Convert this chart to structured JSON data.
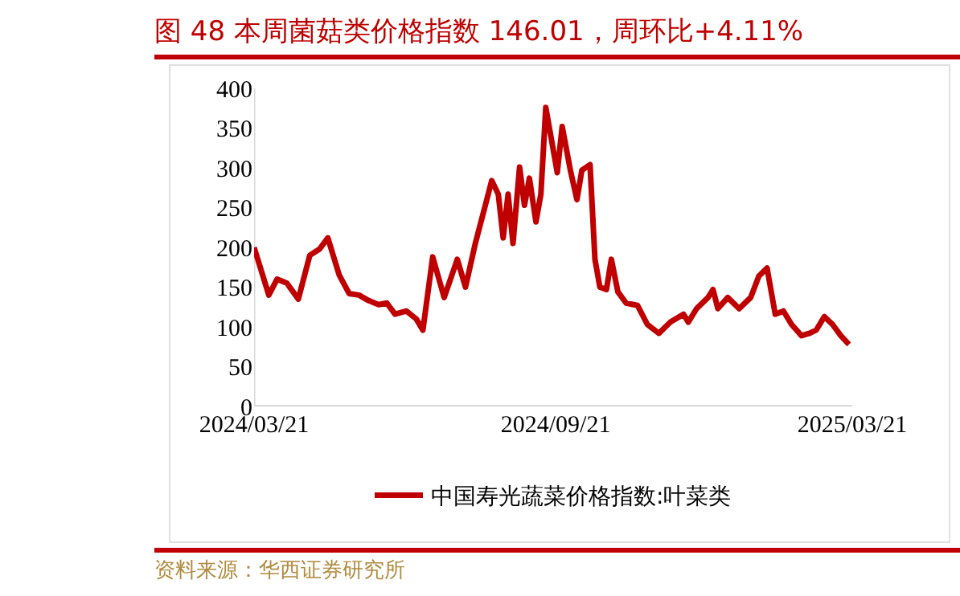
{
  "chart_data": {
    "type": "line",
    "title": "图 48 本周菌菇类价格指数 146.01，周环比+4.11%",
    "annotations": [
      "资料来源：华西证券研究所"
    ],
    "x": [
      "2024-03-21",
      "2024-03-30",
      "2024-04-04",
      "2024-04-10",
      "2024-04-17",
      "2024-04-24",
      "2024-04-30",
      "2024-05-05",
      "2024-05-12",
      "2024-05-18",
      "2024-05-24",
      "2024-05-30",
      "2024-06-05",
      "2024-06-10",
      "2024-06-15",
      "2024-06-22",
      "2024-06-28",
      "2024-07-02",
      "2024-07-08",
      "2024-07-15",
      "2024-07-23",
      "2024-07-28",
      "2024-08-03",
      "2024-08-10",
      "2024-08-13",
      "2024-08-17",
      "2024-08-20",
      "2024-08-23",
      "2024-08-26",
      "2024-08-30",
      "2024-09-02",
      "2024-09-05",
      "2024-09-09",
      "2024-09-12",
      "2024-09-15",
      "2024-09-22",
      "2024-09-25",
      "2024-09-30",
      "2024-10-04",
      "2024-10-07",
      "2024-10-12",
      "2024-10-15",
      "2024-10-18",
      "2024-10-22",
      "2024-10-25",
      "2024-10-29",
      "2024-11-03",
      "2024-11-10",
      "2024-11-16",
      "2024-11-23",
      "2024-11-30",
      "2024-12-08",
      "2024-12-11",
      "2024-12-16",
      "2024-12-23",
      "2024-12-26",
      "2024-12-29",
      "2025-01-04",
      "2025-01-11",
      "2025-01-18",
      "2025-01-23",
      "2025-01-28",
      "2025-02-02",
      "2025-02-07",
      "2025-02-12",
      "2025-02-18",
      "2025-02-23",
      "2025-02-27",
      "2025-03-04",
      "2025-03-09",
      "2025-03-14",
      "2025-03-19"
    ],
    "series": [
      {
        "name": "中国寿光蔬菜价格指数:叶菜类",
        "color": "#c00000",
        "values": [
          200,
          140,
          160,
          155,
          135,
          190,
          198,
          212,
          165,
          142,
          140,
          133,
          128,
          130,
          116,
          120,
          110,
          96,
          188,
          137,
          185,
          150,
          205,
          260,
          284,
          267,
          212,
          267,
          205,
          301,
          253,
          287,
          232,
          267,
          376,
          294,
          352,
          297,
          260,
          297,
          304,
          185,
          150,
          147,
          185,
          144,
          130,
          127,
          103,
          92,
          106,
          116,
          106,
          123,
          137,
          147,
          123,
          137,
          123,
          137,
          164,
          174,
          116,
          120,
          103,
          89,
          92,
          96,
          113,
          103,
          89,
          78
        ]
      }
    ],
    "xlim": [
      "2024-03-21",
      "2025-03-21"
    ],
    "xticks": [
      {
        "value": "2024-03-21",
        "label": "2024/03/21"
      },
      {
        "value": "2024-09-21",
        "label": "2024/09/21"
      },
      {
        "value": "2025-03-21",
        "label": "2025/03/21"
      }
    ],
    "ylim": [
      0,
      400
    ],
    "yticks": [
      0,
      50,
      100,
      150,
      200,
      250,
      300,
      350,
      400
    ],
    "grid": false,
    "legend": "bottom",
    "marker": "none",
    "line_style": "solid"
  }
}
